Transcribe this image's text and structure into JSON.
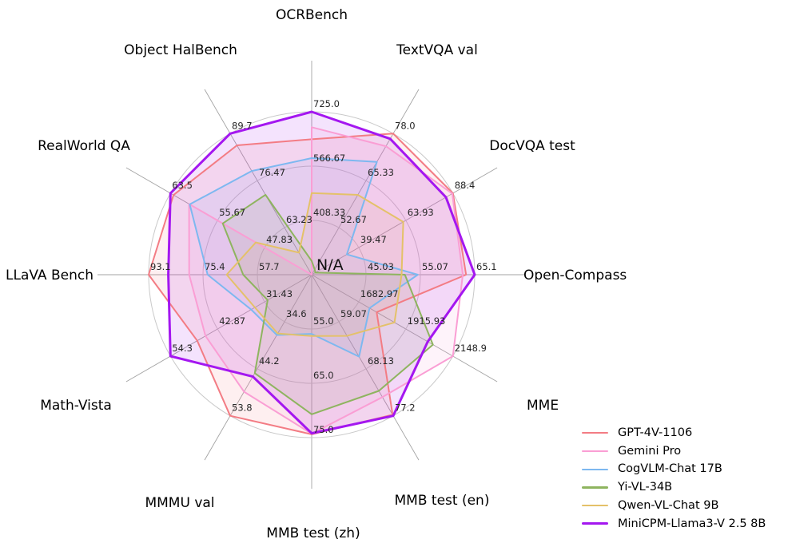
{
  "chart_data": {
    "type": "radar",
    "center_label": "N/A",
    "grid": {
      "rings": 3,
      "ring_color": "#c9c9c9",
      "spoke_color": "#a3a3a3"
    },
    "legend_position": "lower right",
    "axes": [
      {
        "label": "OCRBench",
        "min": 250,
        "max": 725,
        "ticks": [
          "408.33",
          "566.67",
          "725.0"
        ],
        "label_pos": [
          390,
          24,
          "middle"
        ]
      },
      {
        "label": "TextVQA val",
        "min": 40,
        "max": 78,
        "ticks": [
          "52.67",
          "65.33",
          "78.0"
        ],
        "label_pos": [
          547,
          68,
          "middle"
        ]
      },
      {
        "label": "DocVQA test",
        "min": 15,
        "max": 88.4,
        "ticks": [
          "39.47",
          "63.93",
          "88.4"
        ],
        "label_pos": [
          666,
          188,
          "middle"
        ]
      },
      {
        "label": "Open-Compass",
        "min": 35,
        "max": 65.1,
        "ticks": [
          "45.03",
          "55.07",
          "65.1"
        ],
        "label_pos": [
          655,
          350,
          "start"
        ]
      },
      {
        "label": "MME",
        "min": 1450,
        "max": 2148.9,
        "ticks": [
          "1682.97",
          "1915.93",
          "2148.9"
        ],
        "label_pos": [
          659,
          513,
          "start"
        ]
      },
      {
        "label": "MMB test (en)",
        "min": 50,
        "max": 77.2,
        "ticks": [
          "59.07",
          "68.13",
          "77.2"
        ],
        "label_pos": [
          553,
          632,
          "middle"
        ]
      },
      {
        "label": "MMB test (zh)",
        "min": 45,
        "max": 75,
        "ticks": [
          "55.0",
          "65.0",
          "75.0"
        ],
        "label_pos": [
          392,
          673,
          "middle"
        ]
      },
      {
        "label": "MMMU val",
        "min": 25,
        "max": 53.8,
        "ticks": [
          "34.6",
          "44.2",
          "53.8"
        ],
        "label_pos": [
          225,
          635,
          "middle"
        ]
      },
      {
        "label": "Math-Vista",
        "min": 20,
        "max": 54.3,
        "ticks": [
          "31.43",
          "42.87",
          "54.3"
        ],
        "label_pos": [
          95,
          513,
          "middle"
        ]
      },
      {
        "label": "LLaVA Bench",
        "min": 40,
        "max": 93.1,
        "ticks": [
          "57.7",
          "75.4",
          "93.1"
        ],
        "label_pos": [
          62,
          350,
          "middle"
        ]
      },
      {
        "label": "RealWorld QA",
        "min": 40,
        "max": 63.5,
        "ticks": [
          "47.83",
          "55.67",
          "63.5"
        ],
        "label_pos": [
          105,
          188,
          "middle"
        ]
      },
      {
        "label": "Object HalBench",
        "min": 50,
        "max": 89.7,
        "ticks": [
          "63.23",
          "76.47",
          "89.7"
        ],
        "label_pos": [
          226,
          68,
          "middle"
        ]
      }
    ],
    "series": [
      {
        "name": "GPT-4V-1106",
        "color": "#f37c84",
        "values": [
          645,
          78.0,
          88.4,
          63.5,
          1771.5,
          77.0,
          74.4,
          53.8,
          47.8,
          93.1,
          63.0,
          86.4
        ]
      },
      {
        "name": "Gemini Pro",
        "color": "#fa9ed4",
        "values": [
          680,
          74.6,
          88.1,
          62.9,
          2148.9,
          73.6,
          74.3,
          48.9,
          45.8,
          79.9,
          60.4,
          null
        ]
      },
      {
        "name": "CogVLM-Chat 17B",
        "color": "#7db8f0",
        "values": [
          590,
          70.4,
          33.3,
          54.6,
          1736.6,
          65.8,
          55.9,
          37.3,
          34.7,
          73.9,
          60.3,
          79.2
        ]
      },
      {
        "name": "Yi-VL-34B",
        "color": "#8eb45f",
        "values": [
          290,
          41.4,
          16.9,
          52.2,
          2050.2,
          72.4,
          70.7,
          45.1,
          30.7,
          62.3,
          54.8,
          72.5
        ]
      },
      {
        "name": "Qwen-VL-Chat 9B",
        "color": "#e4c169",
        "values": [
          488,
          61.5,
          62.6,
          51.6,
          1860.0,
          61.8,
          56.3,
          37.0,
          33.8,
          67.7,
          49.3,
          56.2
        ]
      },
      {
        "name": "MiniCPM-Llama3-V 2.5 8B",
        "color": "#a417f0",
        "values": [
          725,
          76.6,
          84.8,
          65.1,
          2024.6,
          77.2,
          74.2,
          45.8,
          54.3,
          86.7,
          63.5,
          89.7
        ]
      }
    ]
  }
}
